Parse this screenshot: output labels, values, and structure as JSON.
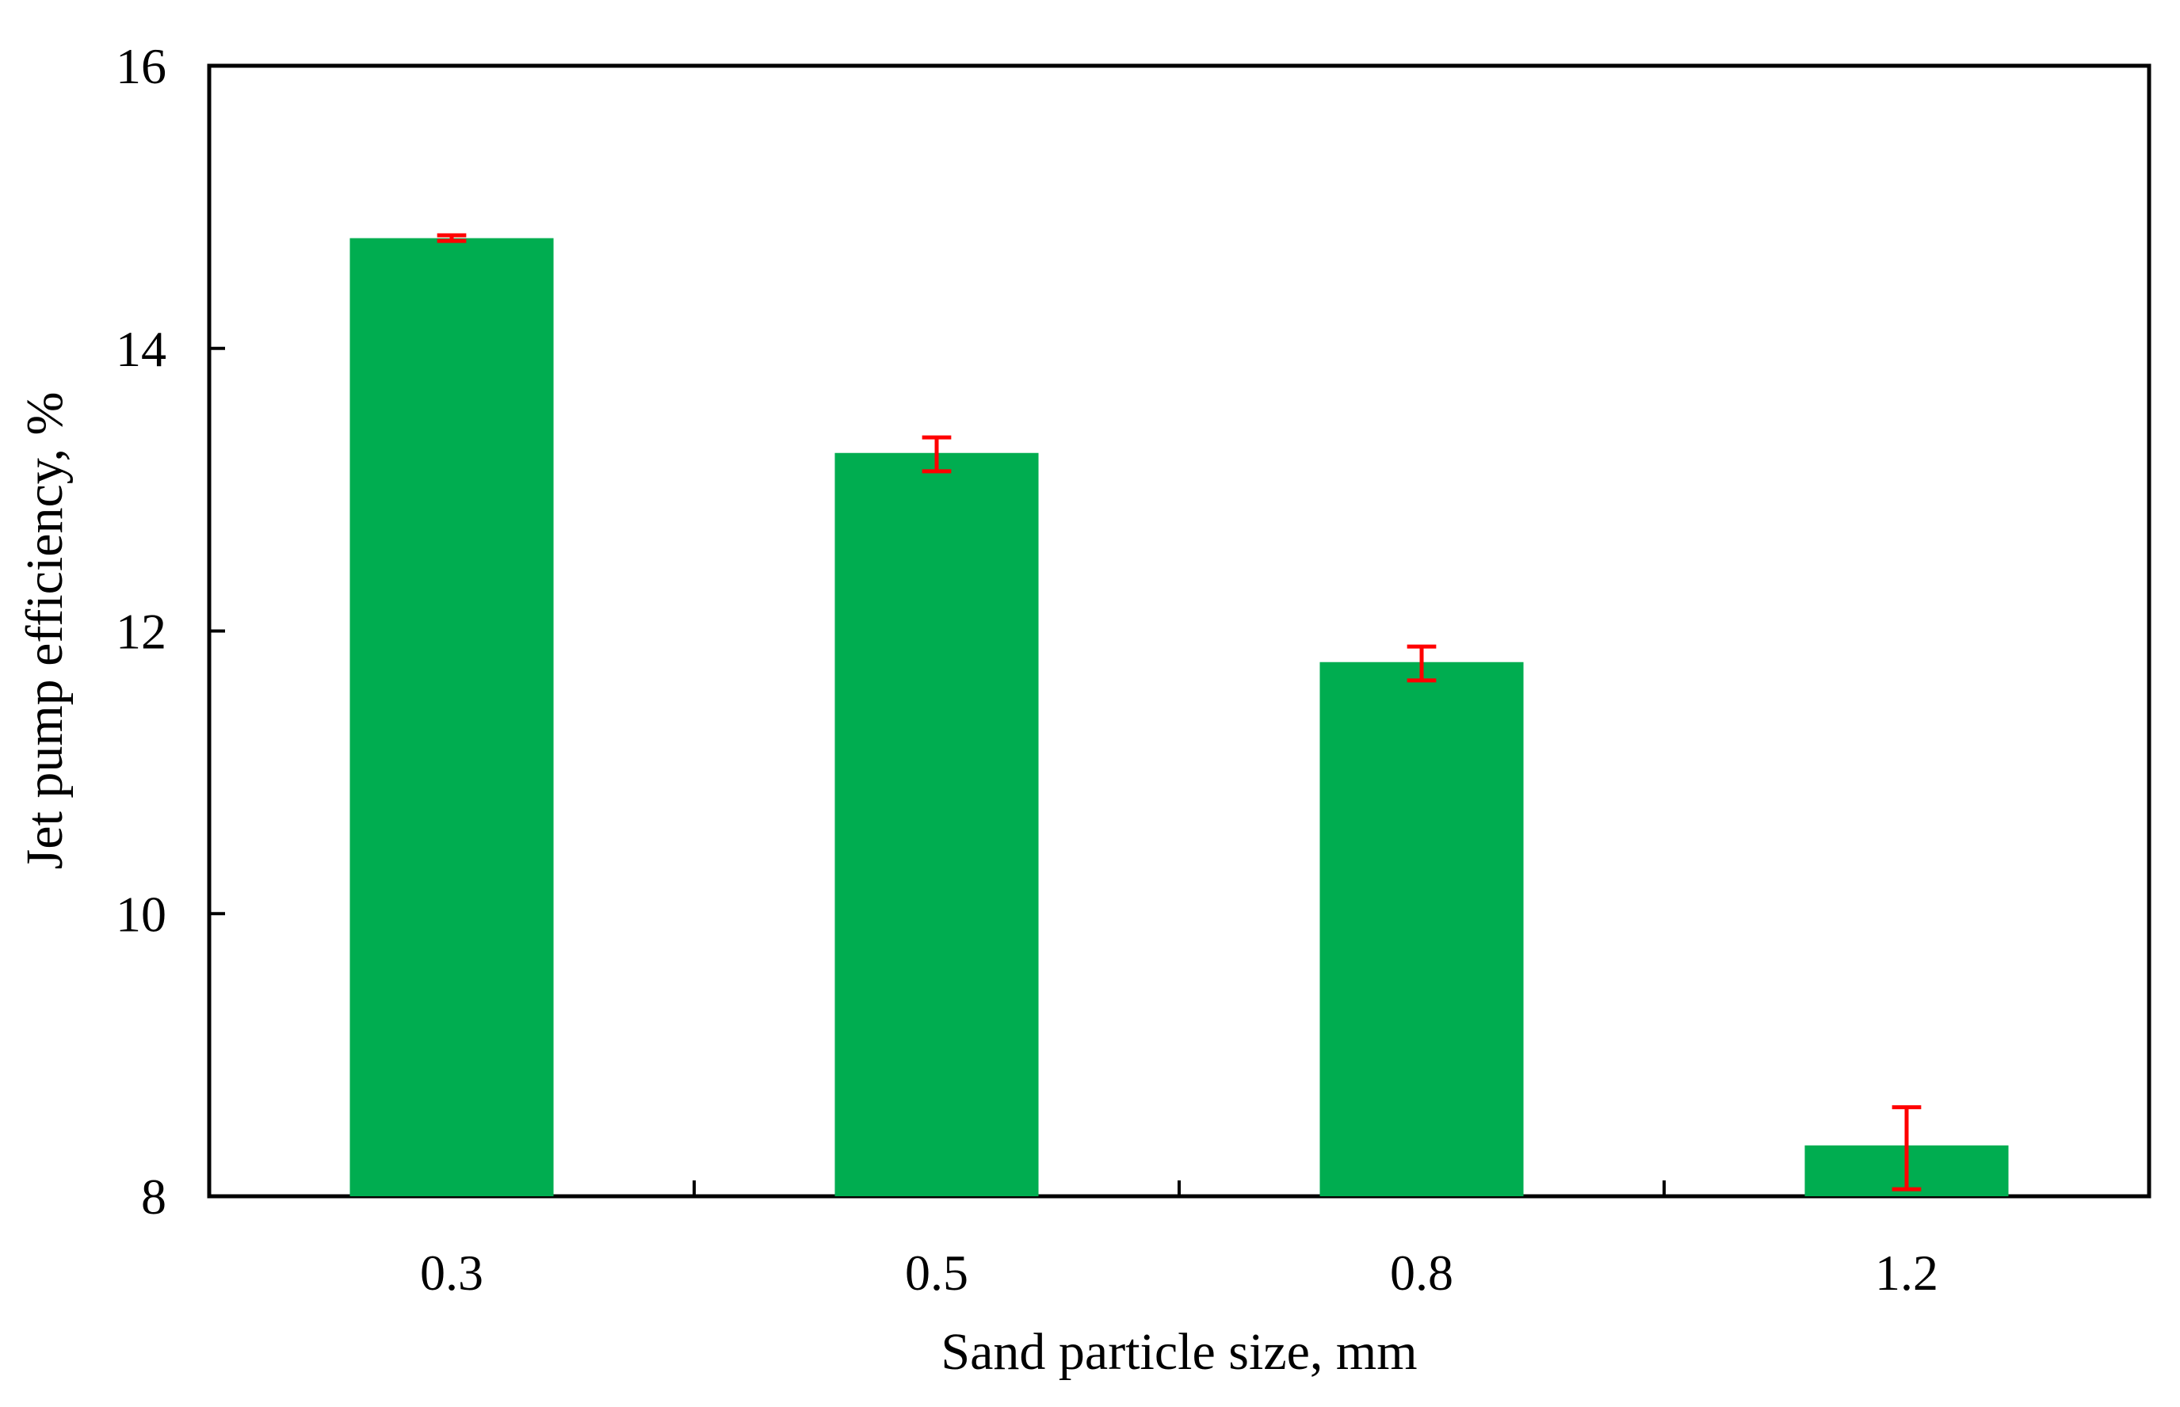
{
  "chart_data": {
    "type": "bar",
    "title": "",
    "xlabel": "Sand particle size, mm",
    "ylabel": "Jet pump efficiency, %",
    "categories": [
      "0.3",
      "0.5",
      "0.8",
      "1.2"
    ],
    "values": [
      14.78,
      13.26,
      11.78,
      8.36
    ],
    "error": {
      "low": [
        14.76,
        13.13,
        11.65,
        8.05
      ],
      "high": [
        14.8,
        13.37,
        11.89,
        8.63
      ]
    },
    "ylim": [
      8,
      16
    ],
    "yticks": [
      "8",
      "10",
      "12",
      "14",
      "16"
    ],
    "ytick_values": [
      8,
      10,
      12,
      14,
      16
    ],
    "grid": false,
    "legend": "none",
    "colors": {
      "bar": "#00AD50",
      "error_bar": "#FF0000",
      "axis": "#000000"
    }
  }
}
